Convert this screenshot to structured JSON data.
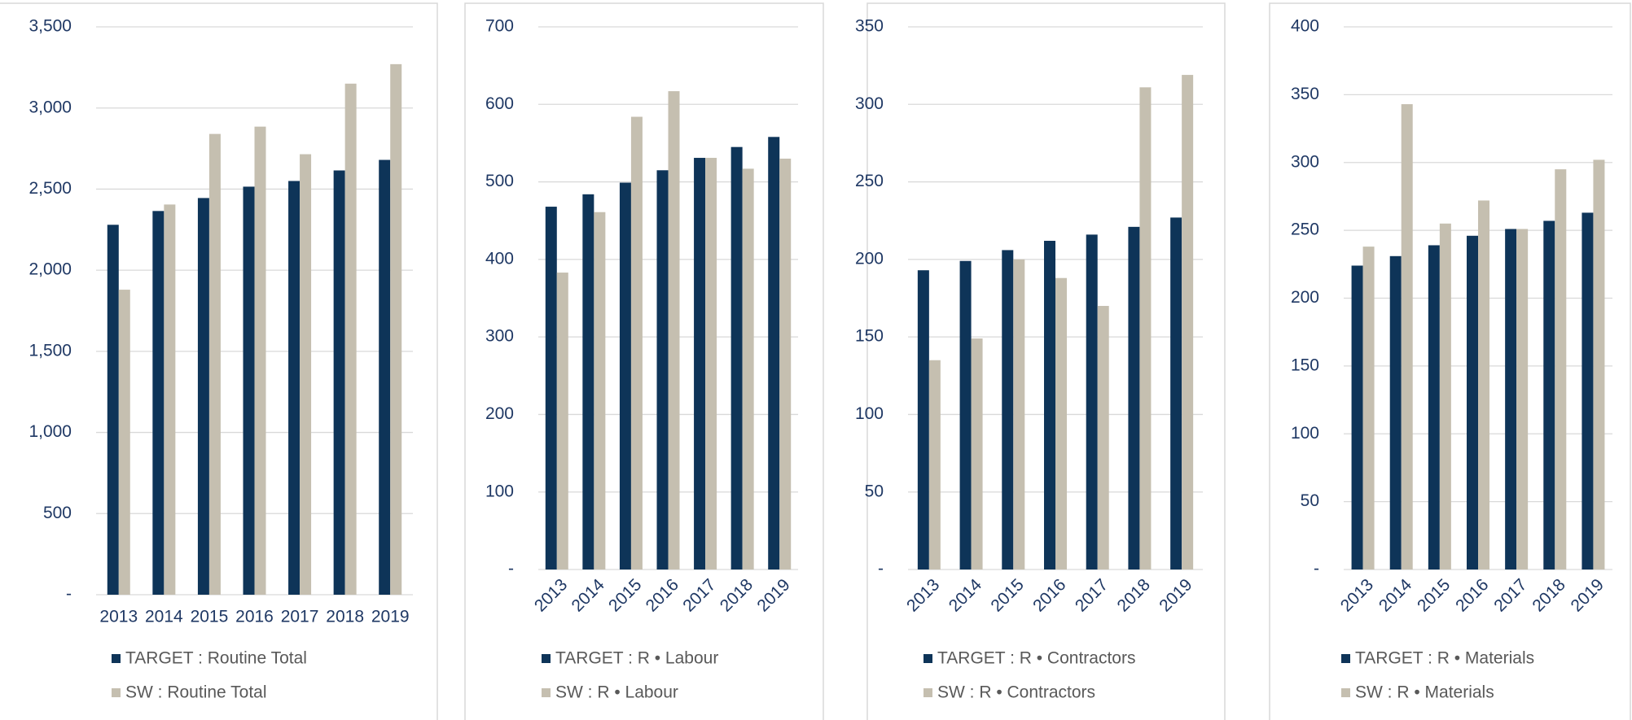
{
  "chart_data": [
    {
      "type": "bar",
      "categories": [
        "2013",
        "2014",
        "2015",
        "2016",
        "2017",
        "2018",
        "2019"
      ],
      "series": [
        {
          "name": "TARGET : Routine Total",
          "color": "#0e3458",
          "values": [
            2280,
            2365,
            2445,
            2515,
            2550,
            2615,
            2680
          ]
        },
        {
          "name": "SW : Routine Total",
          "color": "#c5bfb0",
          "values": [
            1880,
            2405,
            2840,
            2885,
            2715,
            3150,
            3270
          ]
        }
      ],
      "ylim": [
        0,
        3500
      ],
      "yticks": [
        {
          "value": 0,
          "label": "-"
        },
        500,
        {
          "value": 1000,
          "label": "1,000"
        },
        {
          "value": 1500,
          "label": "1,500"
        },
        {
          "value": 2000,
          "label": "2,000"
        },
        {
          "value": 2500,
          "label": "2,500"
        },
        {
          "value": 3000,
          "label": "3,000"
        },
        {
          "value": 3500,
          "label": "3,500"
        }
      ],
      "grid": true
    },
    {
      "type": "bar",
      "categories": [
        "2013",
        "2014",
        "2015",
        "2016",
        "2017",
        "2018",
        "2019"
      ],
      "series": [
        {
          "name": "TARGET : R • Labour",
          "color": "#0e3458",
          "values": [
            468,
            484,
            499,
            515,
            531,
            545,
            558
          ]
        },
        {
          "name": "SW : R • Labour",
          "color": "#c5bfb0",
          "values": [
            383,
            461,
            584,
            617,
            531,
            517,
            530
          ]
        }
      ],
      "ylim": [
        0,
        700
      ],
      "yticks": [
        {
          "value": 0,
          "label": "-"
        },
        100,
        200,
        300,
        400,
        500,
        600,
        700
      ],
      "grid": true
    },
    {
      "type": "bar",
      "categories": [
        "2013",
        "2014",
        "2015",
        "2016",
        "2017",
        "2018",
        "2019"
      ],
      "series": [
        {
          "name": "TARGET : R • Contractors",
          "color": "#0e3458",
          "values": [
            193,
            199,
            206,
            212,
            216,
            221,
            227
          ]
        },
        {
          "name": "SW : R • Contractors",
          "color": "#c5bfb0",
          "values": [
            135,
            149,
            200,
            188,
            170,
            311,
            319
          ]
        }
      ],
      "ylim": [
        0,
        350
      ],
      "yticks": [
        {
          "value": 0,
          "label": "-"
        },
        50,
        100,
        150,
        200,
        250,
        300,
        350
      ],
      "grid": true
    },
    {
      "type": "bar",
      "categories": [
        "2013",
        "2014",
        "2015",
        "2016",
        "2017",
        "2018",
        "2019"
      ],
      "series": [
        {
          "name": "TARGET : R • Materials",
          "color": "#0e3458",
          "values": [
            224,
            231,
            239,
            246,
            251,
            257,
            263
          ]
        },
        {
          "name": "SW : R • Materials",
          "color": "#c5bfb0",
          "values": [
            238,
            343,
            255,
            272,
            251,
            295,
            302
          ]
        }
      ],
      "ylim": [
        0,
        400
      ],
      "yticks": [
        {
          "value": 0,
          "label": "-"
        },
        50,
        100,
        150,
        200,
        250,
        300,
        350,
        400
      ],
      "grid": true
    }
  ]
}
